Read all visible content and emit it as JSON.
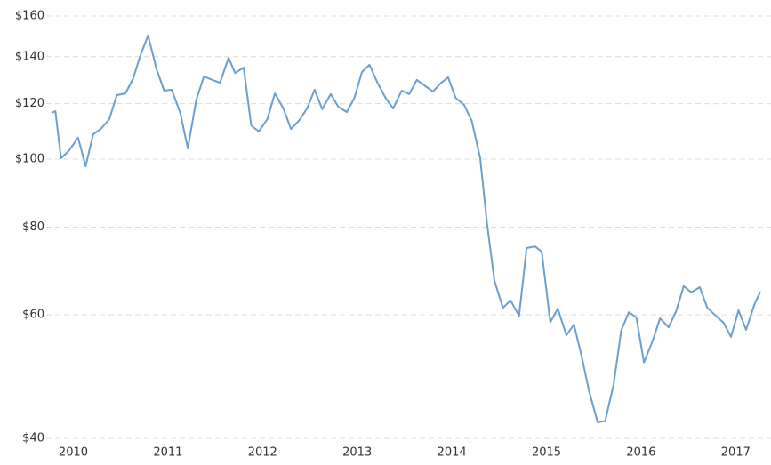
{
  "chart_data": {
    "type": "line",
    "log_y": true,
    "grid": true,
    "xlim": [
      2009.77,
      2017.26
    ],
    "xticks": [
      2010,
      2011,
      2012,
      2013,
      2014,
      2015,
      2016,
      2017
    ],
    "ylim": [
      40,
      160
    ],
    "yticks": [
      {
        "value": 40,
        "label": "$40"
      },
      {
        "value": 60,
        "label": "$60"
      },
      {
        "value": 80,
        "label": "$80"
      },
      {
        "value": 100,
        "label": "$100"
      },
      {
        "value": 120,
        "label": "$120"
      },
      {
        "value": 140,
        "label": "$140"
      },
      {
        "value": 160,
        "label": "$160"
      }
    ],
    "x": [
      2009.77,
      2009.81,
      2009.87,
      2009.95,
      2010.05,
      2010.13,
      2010.21,
      2010.29,
      2010.38,
      2010.46,
      2010.55,
      2010.63,
      2010.71,
      2010.79,
      2010.88,
      2010.96,
      2011.04,
      2011.13,
      2011.21,
      2011.3,
      2011.38,
      2011.47,
      2011.55,
      2011.64,
      2011.71,
      2011.8,
      2011.88,
      2011.96,
      2012.05,
      2012.13,
      2012.22,
      2012.3,
      2012.39,
      2012.47,
      2012.55,
      2012.63,
      2012.72,
      2012.8,
      2012.89,
      2012.97,
      2013.05,
      2013.13,
      2013.21,
      2013.3,
      2013.38,
      2013.47,
      2013.55,
      2013.63,
      2013.71,
      2013.8,
      2013.88,
      2013.96,
      2014.04,
      2014.13,
      2014.21,
      2014.3,
      2014.37,
      2014.45,
      2014.54,
      2014.62,
      2014.71,
      2014.79,
      2014.88,
      2014.95,
      2015.04,
      2015.12,
      2015.21,
      2015.29,
      2015.37,
      2015.45,
      2015.54,
      2015.62,
      2015.71,
      2015.79,
      2015.87,
      2015.95,
      2016.03,
      2016.12,
      2016.2,
      2016.29,
      2016.37,
      2016.45,
      2016.53,
      2016.62,
      2016.7,
      2016.79,
      2016.87,
      2016.95,
      2017.03,
      2017.11,
      2017.2,
      2017.26
    ],
    "series": [
      {
        "color": "#6a9fd0",
        "values": [
          116.4,
          117.1,
          100.3,
          102.7,
          107.3,
          97.7,
          108.5,
          110.4,
          114.0,
          123.4,
          124.1,
          130.1,
          140.7,
          150.1,
          134.3,
          125.2,
          125.6,
          116.4,
          103.6,
          121.6,
          131.2,
          129.7,
          128.5,
          139.5,
          132.7,
          135.1,
          111.7,
          109.5,
          114.0,
          124.1,
          118.1,
          110.4,
          113.7,
          118.1,
          125.6,
          117.8,
          123.8,
          118.8,
          116.7,
          122.3,
          133.1,
          136.3,
          128.9,
          122.3,
          118.1,
          125.2,
          123.8,
          129.7,
          127.4,
          124.8,
          128.2,
          130.8,
          122.3,
          119.5,
          113.4,
          100.3,
          81.3,
          67.1,
          61.4,
          62.9,
          59.8,
          74.7,
          75.1,
          73.8,
          58.6,
          61.2,
          56.1,
          58.1,
          52.5,
          46.7,
          42.2,
          42.3,
          47.8,
          57.0,
          60.5,
          59.5,
          51.3,
          55.0,
          59.3,
          57.6,
          60.7,
          65.9,
          64.6,
          65.7,
          61.4,
          59.8,
          58.5,
          55.8,
          60.9,
          57.1,
          62.2,
          64.7
        ]
      }
    ]
  }
}
